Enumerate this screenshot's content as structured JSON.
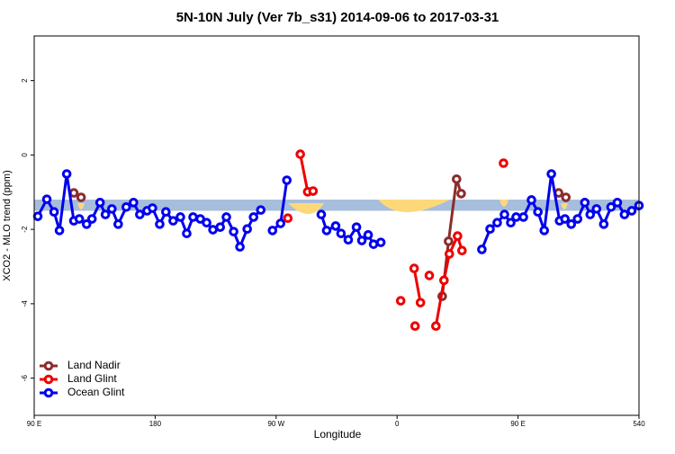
{
  "chart_data": {
    "type": "line",
    "title": "5N-10N July (Ver 7b_s31)   2014-09-06 to 2017-03-31",
    "x_label": "Longitude",
    "y_label": "XCO2 - MLO trend (ppm)",
    "xlim": [
      90,
      540
    ],
    "ylim": [
      -7,
      3.2
    ],
    "xticks": [
      {
        "value": 90,
        "label": "90 E"
      },
      180,
      {
        "value": 270,
        "label": "90 W"
      },
      {
        "value": 360,
        "label": "0"
      },
      {
        "value": 450,
        "label": "90 E"
      },
      540
    ],
    "yticks": [
      2,
      0,
      -2,
      -4,
      -6
    ],
    "reference_band": [
      -1.5,
      -1.2
    ],
    "reference_band_color": "#a6bddb",
    "legend": "bottom-left",
    "series": [
      {
        "name": "Land Nadir",
        "color": "#8b2c2c",
        "x": [
          119.5,
          124.9,
          null,
          393.6,
          398.3,
          404.3,
          407.7,
          null,
          480.2,
          485.6
        ],
        "values": [
          -1.02,
          -1.14,
          null,
          -3.8,
          -2.32,
          -0.65,
          -1.04,
          null,
          -1.02,
          -1.14
        ]
      },
      {
        "name": "Land Glint",
        "color": "#ee0000",
        "x": [
          278.7,
          null,
          288,
          293.5,
          297.5,
          null,
          362.7,
          null,
          372.7,
          377.4,
          null,
          373.4,
          null,
          384,
          null,
          388.9,
          394.9,
          398.9,
          405,
          408.3,
          null,
          439.2
        ],
        "values": [
          -1.7,
          null,
          0.02,
          -0.99,
          -0.97,
          null,
          -3.92,
          null,
          -3.05,
          -3.97,
          null,
          -4.6,
          null,
          -3.24,
          null,
          -4.6,
          -3.37,
          -2.66,
          -2.18,
          -2.57,
          null,
          -0.22
        ]
      },
      {
        "name": "Ocean Glint",
        "color": "#0000ee",
        "x": [
          92.7,
          99.4,
          104.8,
          108.8,
          114.2,
          119.5,
          123.6,
          129,
          133,
          139,
          143,
          147.8,
          152.5,
          158.5,
          163.9,
          168.6,
          174,
          178,
          183.4,
          188,
          193.4,
          198.8,
          203.5,
          208.2,
          213.6,
          218.3,
          223,
          228.4,
          233,
          238.4,
          243.1,
          248.5,
          253.2,
          258.6,
          null,
          267.3,
          273.3,
          278,
          null,
          303.6,
          307.6,
          314.3,
          318.3,
          323.7,
          329.8,
          333.8,
          338.5,
          342.5,
          347.9,
          null,
          423.1,
          429.2,
          434.5,
          439.9,
          444.6,
          448.6,
          454,
          460,
          464.8,
          469.5,
          474.8,
          480.9,
          484.9,
          489.6,
          494.3,
          499.7,
          503.7,
          508.4,
          513.8,
          519.2,
          523.9,
          529.2,
          534.6,
          540
        ],
        "values": [
          -1.65,
          -1.19,
          -1.53,
          -2.03,
          -0.51,
          -1.77,
          -1.72,
          -1.86,
          -1.72,
          -1.28,
          -1.6,
          -1.45,
          -1.86,
          -1.4,
          -1.28,
          -1.6,
          -1.5,
          -1.43,
          -1.86,
          -1.53,
          -1.77,
          -1.67,
          -2.11,
          -1.67,
          -1.72,
          -1.82,
          -2.01,
          -1.94,
          -1.67,
          -2.06,
          -2.47,
          -1.99,
          -1.67,
          -1.48,
          null,
          -2.03,
          -1.84,
          -0.68,
          null,
          -1.6,
          -2.03,
          -1.91,
          -2.11,
          -2.28,
          -1.94,
          -2.3,
          -2.15,
          -2.4,
          -2.35,
          null,
          -2.54,
          -1.99,
          -1.82,
          -1.6,
          -1.82,
          -1.67,
          -1.67,
          -1.21,
          -1.53,
          -2.03,
          -0.51,
          -1.77,
          -1.72,
          -1.86,
          -1.72,
          -1.28,
          -1.6,
          -1.45,
          -1.86,
          -1.4,
          -1.28,
          -1.6,
          -1.5,
          -1.36
        ]
      }
    ]
  }
}
